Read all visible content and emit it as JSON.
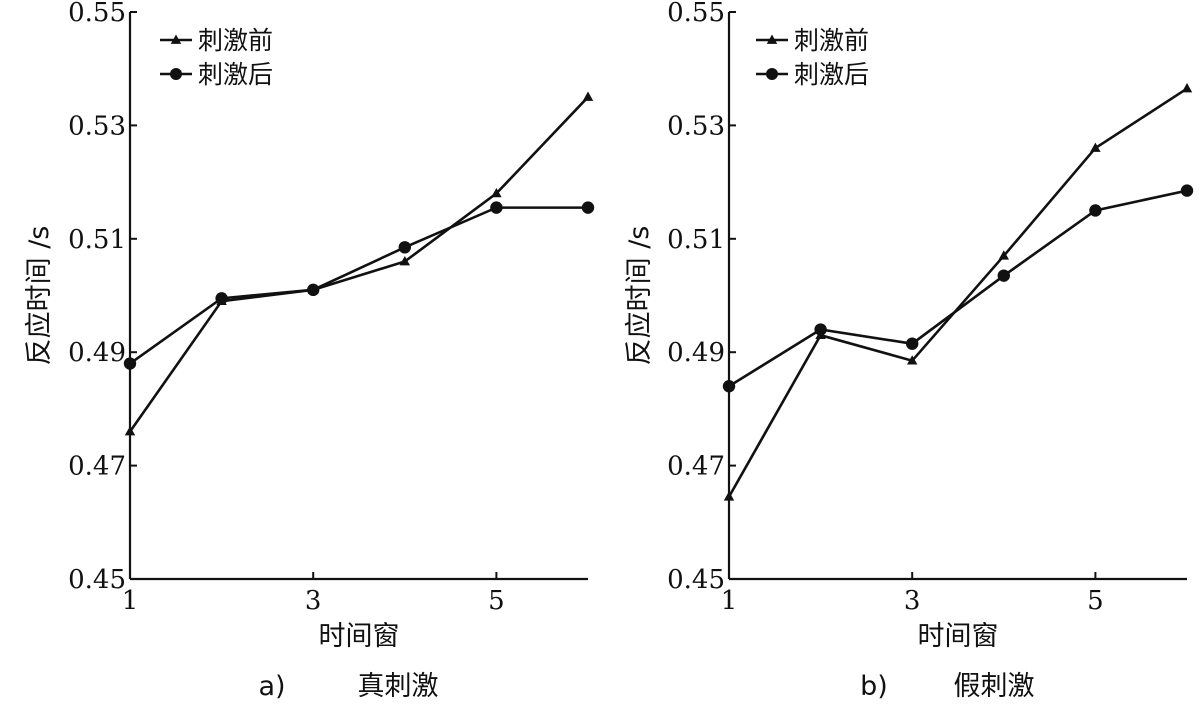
{
  "chart_data": [
    {
      "type": "line",
      "panel": "a)",
      "caption": "真刺激",
      "xlabel": "时间窗",
      "ylabel": "反应时间 /s",
      "xlim": [
        1,
        6
      ],
      "ylim": [
        0.45,
        0.55
      ],
      "xticks": [
        1,
        3,
        5
      ],
      "yticks": [
        0.45,
        0.47,
        0.49,
        0.51,
        0.53,
        0.55
      ],
      "ytick_labels": [
        "0.45",
        "0.47",
        "0.49",
        "0.51",
        "0.53",
        "0.55"
      ],
      "legend": "top-left",
      "x": [
        1,
        2,
        3,
        4,
        5,
        6
      ],
      "series": [
        {
          "name": "刺激前",
          "marker": "triangle",
          "values": [
            0.476,
            0.499,
            0.501,
            0.506,
            0.518,
            0.535
          ]
        },
        {
          "name": "刺激后",
          "marker": "circle",
          "values": [
            0.488,
            0.4995,
            0.501,
            0.5085,
            0.5155,
            0.5155
          ]
        }
      ]
    },
    {
      "type": "line",
      "panel": "b)",
      "caption": "假刺激",
      "xlabel": "时间窗",
      "ylabel": "反应时间 /s",
      "xlim": [
        1,
        6
      ],
      "ylim": [
        0.45,
        0.55
      ],
      "xticks": [
        1,
        3,
        5
      ],
      "yticks": [
        0.45,
        0.47,
        0.49,
        0.51,
        0.53,
        0.55
      ],
      "ytick_labels": [
        "0.45",
        "0.47",
        "0.49",
        "0.51",
        "0.53",
        "0.55"
      ],
      "legend": "top-left",
      "x": [
        1,
        2,
        3,
        4,
        5,
        6
      ],
      "series": [
        {
          "name": "刺激前",
          "marker": "triangle",
          "values": [
            0.4645,
            0.493,
            0.4885,
            0.507,
            0.526,
            0.5365
          ]
        },
        {
          "name": "刺激后",
          "marker": "circle",
          "values": [
            0.484,
            0.494,
            0.4915,
            0.5035,
            0.515,
            0.5185
          ]
        }
      ]
    }
  ]
}
